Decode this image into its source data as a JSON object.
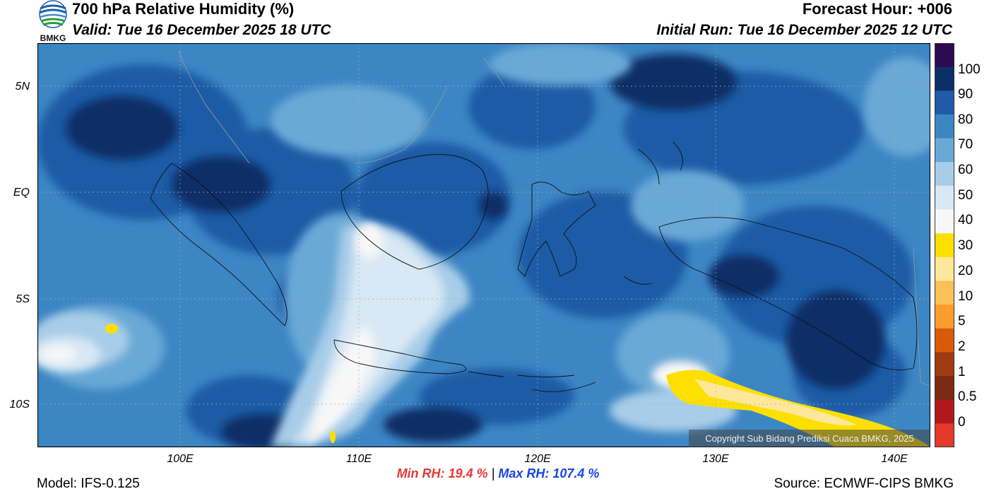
{
  "header": {
    "title": "700 hPa Relative Humidity (%)",
    "valid": "Valid: Tue 16 December 2025 18 UTC",
    "forecast_hour": "Forecast Hour: +006",
    "initial_run": "Initial Run: Tue 16 December 2025 12 UTC"
  },
  "logo": {
    "text": "BMKG"
  },
  "axes": {
    "lat_labels": [
      "5N",
      "EQ",
      "5S",
      "10S"
    ],
    "lon_labels": [
      "100E",
      "110E",
      "120E",
      "130E",
      "140E"
    ]
  },
  "colorbar": {
    "labels": [
      "100",
      "90",
      "80",
      "70",
      "60",
      "50",
      "40",
      "30",
      "20",
      "10",
      "5",
      "2",
      "1",
      "0.5",
      "0"
    ],
    "colors": [
      "#2d0a52",
      "#0b2f66",
      "#1f5ba6",
      "#3d86c4",
      "#6aa9d6",
      "#a8cde8",
      "#d8e8f4",
      "#f7f7f7",
      "#fde000",
      "#fde79a",
      "#fdc05a",
      "#fb9c2c",
      "#d85a0a",
      "#a03a10",
      "#7a2a12",
      "#b0181c",
      "#e33a2a"
    ]
  },
  "stats": {
    "min_label": "Min RH:",
    "min_value": "19.4 %",
    "separator": "|",
    "max_label": "Max RH:",
    "max_value": "107.4 %"
  },
  "footer": {
    "model": "Model: IFS-0.125",
    "source": "Source: ECMWF-CIPS BMKG",
    "copyright": "Copyright Sub Bidang Prediksi Cuaca BMKG, 2025"
  },
  "theme": {
    "background": "#ffffff",
    "min_color": "#e53935",
    "max_color": "#1a46e6"
  }
}
